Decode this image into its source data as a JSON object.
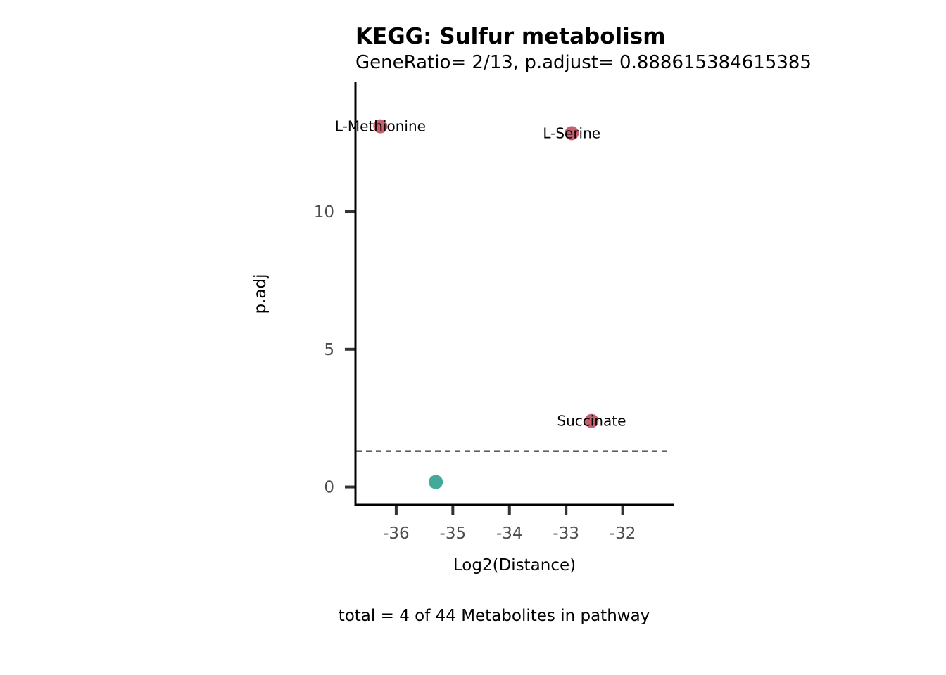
{
  "chart_data": {
    "type": "scatter",
    "title": "KEGG: Sulfur metabolism",
    "subtitle": "GeneRatio= 2/13, p.adjust= 0.888615384615385",
    "xlabel": "Log2(Distance)",
    "ylabel": "p.adj",
    "caption": "total = 4 of 44 Metabolites in pathway",
    "xlim": [
      -36.72,
      -31.1
    ],
    "ylim": [
      -0.65,
      14.7
    ],
    "x_ticks": [
      -36,
      -35,
      -34,
      -33,
      -32
    ],
    "x_tick_labels": [
      "-36",
      "-35",
      "-34",
      "-33",
      "-32"
    ],
    "y_ticks": [
      0,
      5,
      10
    ],
    "y_tick_labels": [
      "0",
      "5",
      "10"
    ],
    "threshold_line": {
      "y": 1.3,
      "style": "dashed"
    },
    "grid": false,
    "colors": {
      "significant": "#c5606f",
      "not_significant": "#43a998",
      "axis": "#000000",
      "tick": "#333333"
    },
    "points": [
      {
        "x": -36.28,
        "y": 13.1,
        "label": "L-Methionine",
        "group": "significant"
      },
      {
        "x": -32.9,
        "y": 12.85,
        "label": "L-Serine",
        "group": "significant"
      },
      {
        "x": -32.55,
        "y": 2.4,
        "label": "Succinate",
        "group": "significant"
      },
      {
        "x": -35.3,
        "y": 0.18,
        "label": "",
        "group": "not_significant"
      }
    ]
  }
}
